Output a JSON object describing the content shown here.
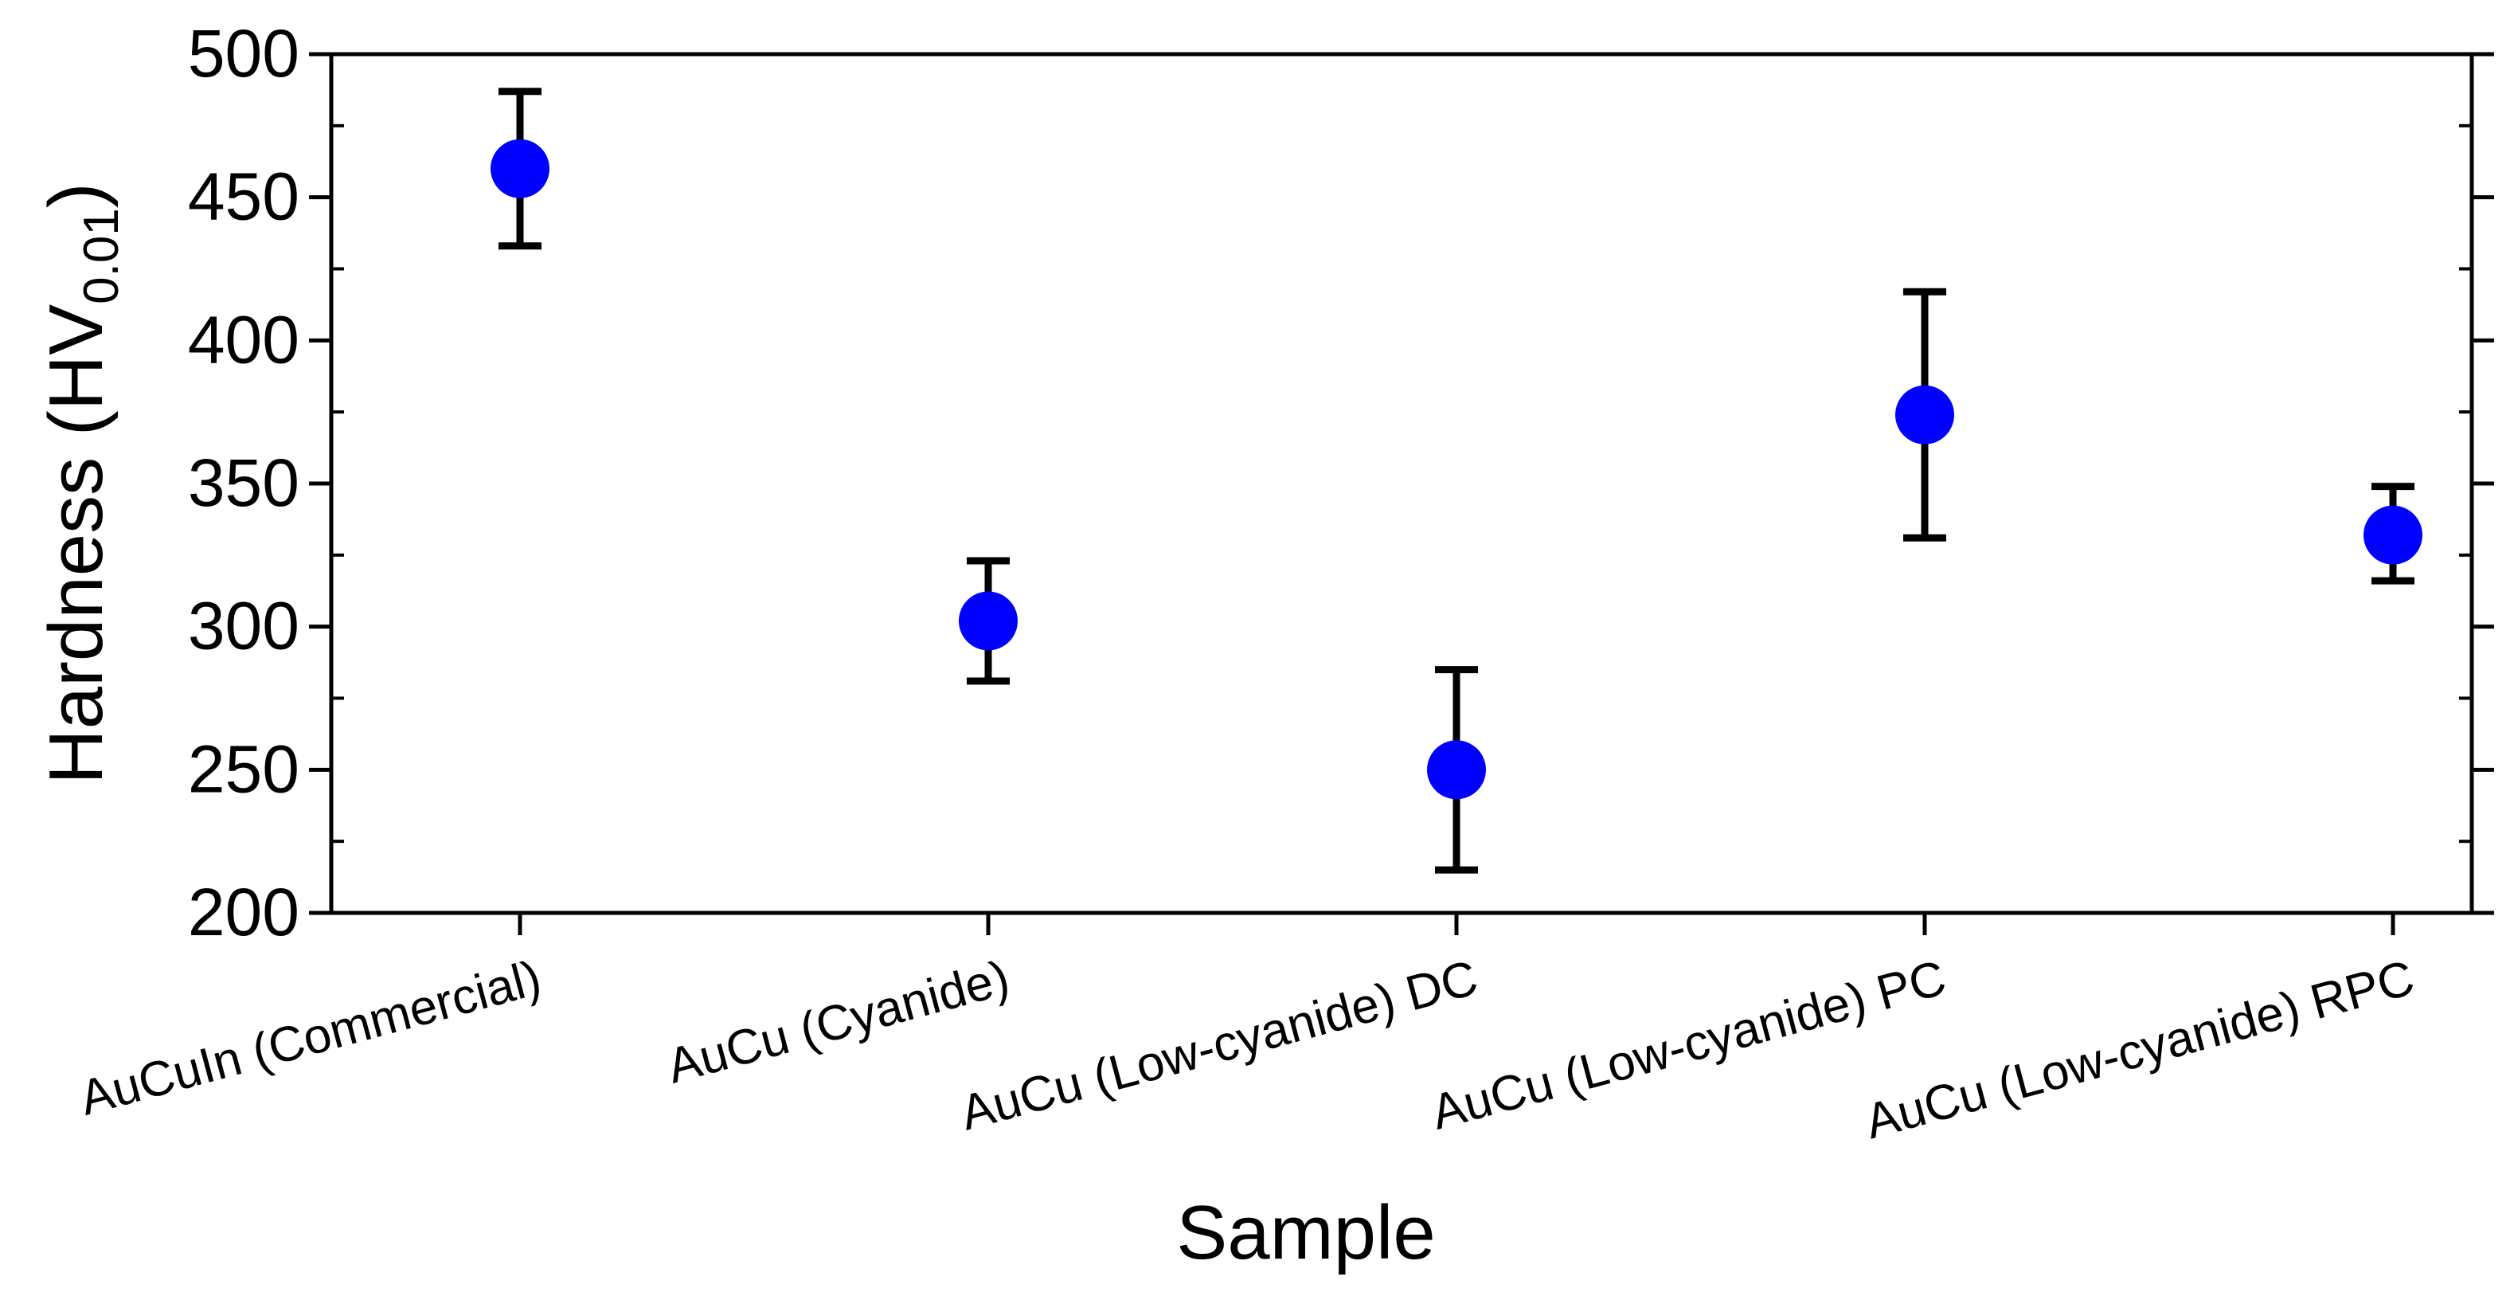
{
  "chart_data": {
    "type": "scatter",
    "title": "",
    "xlabel": "Sample",
    "ylabel_main": "Hardness (HV",
    "ylabel_sub": "0.01",
    "ylabel_close": ")",
    "ylim": [
      200,
      500
    ],
    "yticks": [
      200,
      250,
      300,
      350,
      400,
      450,
      500
    ],
    "ytick_labels": [
      "200",
      "250",
      "300",
      "350",
      "400",
      "450",
      "500"
    ],
    "categories": [
      "AuCuIn (Commercial)",
      "AuCu (Cyanide)",
      "AuCu (Low-cyanide) DC",
      "AuCu (Low-cyanide) PC",
      "AuCu (Low-cyanide) RPC"
    ],
    "series": [
      {
        "values": [
          460,
          302,
          250,
          374,
          332
        ],
        "err_low": [
          433,
          281,
          215,
          331,
          316
        ],
        "err_high": [
          487,
          323,
          285,
          417,
          349
        ]
      }
    ],
    "grid": false,
    "legend": "none",
    "marker_color": "#0000ff",
    "errorbar_color": "#000000"
  }
}
